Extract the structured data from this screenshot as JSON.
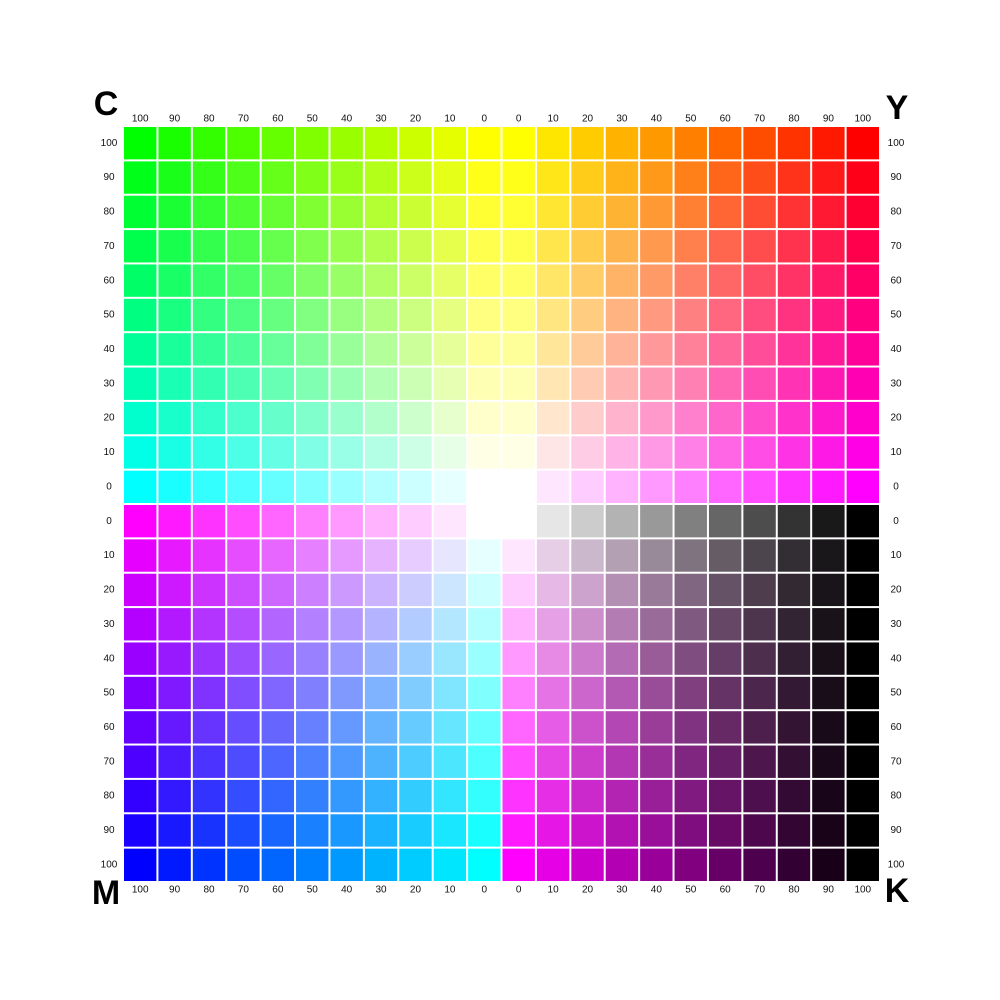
{
  "corners": {
    "top_left": "C",
    "top_right": "Y",
    "bottom_left": "M",
    "bottom_right": "K"
  },
  "top_labels": [
    100,
    90,
    80,
    70,
    60,
    50,
    40,
    30,
    20,
    10,
    0,
    0,
    10,
    20,
    30,
    40,
    50,
    60,
    70,
    80,
    90,
    100
  ],
  "bottom_labels": [
    100,
    90,
    80,
    70,
    60,
    50,
    40,
    30,
    20,
    10,
    0,
    0,
    10,
    20,
    30,
    40,
    50,
    60,
    70,
    80,
    90,
    100
  ],
  "left_labels": [
    100,
    90,
    80,
    70,
    60,
    50,
    40,
    30,
    20,
    10,
    0,
    0,
    10,
    20,
    30,
    40,
    50,
    60,
    70,
    80,
    90,
    100
  ],
  "right_labels": [
    100,
    90,
    80,
    70,
    60,
    50,
    40,
    30,
    20,
    10,
    0,
    0,
    10,
    20,
    30,
    40,
    50,
    60,
    70,
    80,
    90,
    100
  ],
  "quadrants": [
    {
      "columns": "cyan",
      "rows": "yellow"
    },
    {
      "columns": "magenta",
      "rows": "yellow"
    },
    {
      "columns": "magenta",
      "rows": "cyan"
    },
    {
      "columns": "black",
      "rows": "magenta"
    }
  ]
}
